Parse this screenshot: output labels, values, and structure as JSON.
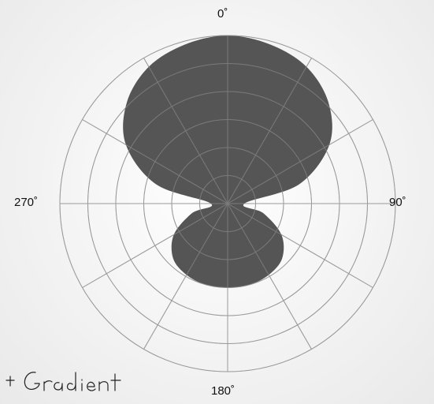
{
  "colors": {
    "fill": "#555555",
    "grid": "#9a9a9a",
    "background": "#f3f3f3"
  },
  "chart_data": {
    "type": "polar-area",
    "title": "",
    "angle_labels": [
      "0˚",
      "90˚",
      "180˚",
      "270˚"
    ],
    "angle_ticks_deg": [
      0,
      30,
      60,
      90,
      120,
      150,
      180,
      210,
      240,
      270,
      300,
      330
    ],
    "radial_rings": 6,
    "rmax": 1.0,
    "grid": true,
    "pattern": "cardioid-like lobes: large lobe toward 0˚, small lobe toward 180˚",
    "series": [
      {
        "angle_deg": [
          0,
          15,
          30,
          45,
          60,
          75,
          90,
          105,
          120,
          135,
          150,
          165,
          180,
          195,
          210,
          225,
          240,
          255,
          270,
          285,
          300,
          315,
          330,
          345
        ],
        "r": [
          1.0,
          0.98,
          0.94,
          0.85,
          0.7,
          0.44,
          0.1,
          0.22,
          0.37,
          0.46,
          0.49,
          0.5,
          0.5,
          0.5,
          0.49,
          0.46,
          0.37,
          0.22,
          0.1,
          0.44,
          0.7,
          0.85,
          0.94,
          0.98
        ]
      }
    ]
  },
  "watermark_text": "+ Gradient"
}
